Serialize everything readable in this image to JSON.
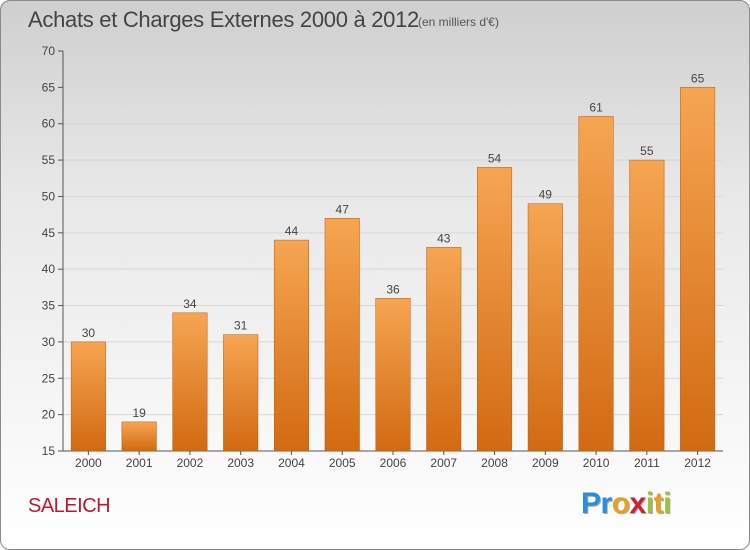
{
  "chart_data": {
    "type": "bar",
    "title": "Achats et Charges Externes 2000 à 2012",
    "subtitle": "(en milliers d'€)",
    "categories": [
      "2000",
      "2001",
      "2002",
      "2003",
      "2004",
      "2005",
      "2006",
      "2007",
      "2008",
      "2009",
      "2010",
      "2011",
      "2012"
    ],
    "values": [
      30,
      19,
      34,
      31,
      44,
      47,
      36,
      43,
      54,
      49,
      61,
      55,
      65
    ],
    "ylim": [
      15,
      70
    ],
    "yticks": [
      15,
      20,
      25,
      30,
      35,
      40,
      45,
      50,
      55,
      60,
      65,
      70
    ],
    "grid": true,
    "bar_color_top": "#f6a552",
    "bar_color_bottom": "#d26a12"
  },
  "place_name": "SALEICH",
  "logo": {
    "letters": [
      "P",
      "r",
      "o",
      "x",
      "i",
      "t",
      "i"
    ],
    "colors": [
      "#2a8fd8",
      "#2a8fd8",
      "#e8a020",
      "#d0202a",
      "#9bc23a",
      "#e8a020",
      "#9bc23a"
    ]
  }
}
